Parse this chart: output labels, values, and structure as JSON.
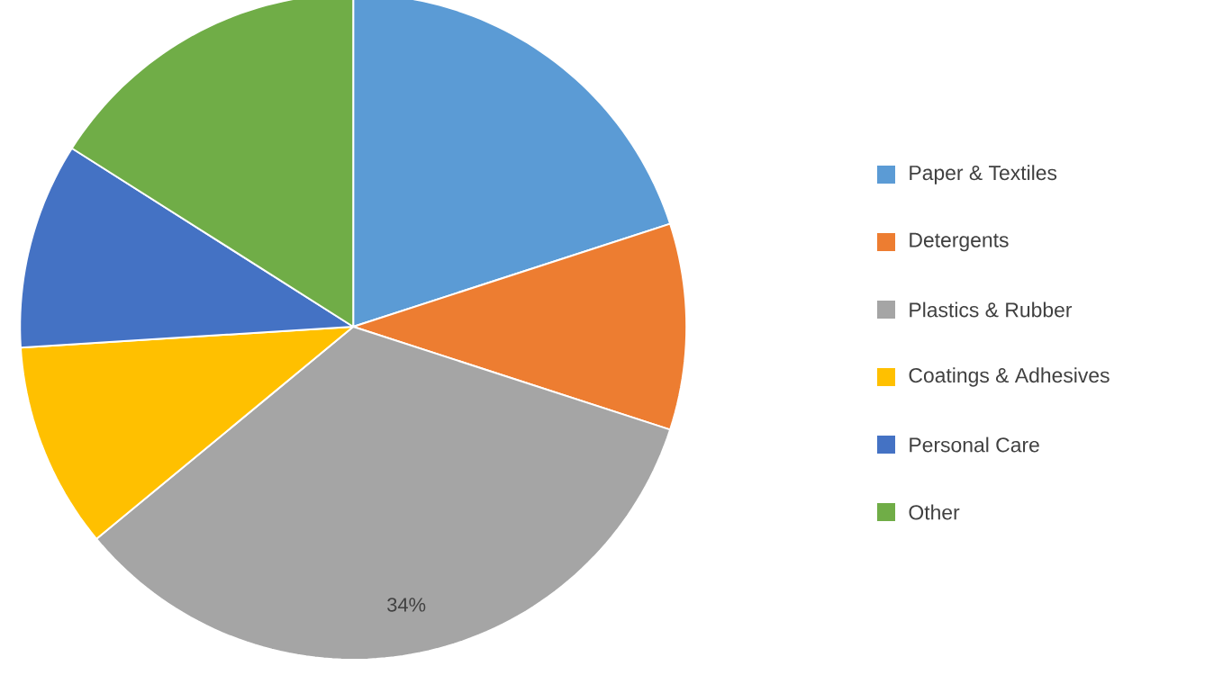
{
  "chart_data": {
    "type": "pie",
    "categories": [
      "Paper & Textiles",
      "Detergents",
      "Plastics & Rubber",
      "Coatings & Adhesives",
      "Personal Care",
      "Other"
    ],
    "values": [
      20,
      10,
      34,
      10,
      10,
      16
    ],
    "colors": [
      "#5b9bd5",
      "#ed7d31",
      "#a5a5a5",
      "#ffc000",
      "#4472c4",
      "#70ad47"
    ],
    "value_labels": [
      null,
      null,
      "34%",
      null,
      null,
      null
    ],
    "legend": "right"
  }
}
